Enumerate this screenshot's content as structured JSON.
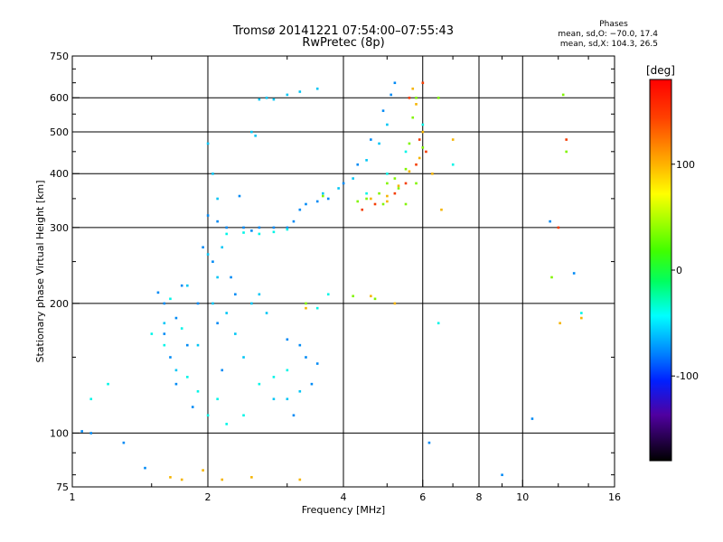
{
  "header": {
    "title_line1": "Tromsø 20141221 07:54:00–07:55:43",
    "title_line2": "RwPretec (8p)",
    "phase_heading": "Phases",
    "phase_line1": "mean, sd,O: −70.0, 17.4",
    "phase_line2": "mean, sd,X: 104.3, 26.5"
  },
  "chart_data": {
    "type": "scatter",
    "title": "Tromsø 20141221 07:54:00–07:55:43",
    "subtitle": "RwPretec (8p)",
    "xlabel": "Frequency [MHz]",
    "ylabel": "Stationary phase Virtual Height [km]",
    "x_scale": "log",
    "y_scale": "log",
    "xlim": [
      1,
      16
    ],
    "ylim": [
      75,
      750
    ],
    "x_ticks": [
      1,
      2,
      4,
      6,
      8,
      10,
      16
    ],
    "y_ticks": [
      75,
      100,
      200,
      300,
      400,
      500,
      600,
      750
    ],
    "grid": true,
    "colorbar": {
      "label": "[deg]",
      "range": [
        -180,
        180
      ],
      "ticks": [
        100,
        0,
        -100
      ],
      "colormap": "rainbow"
    },
    "series": [
      {
        "phase": -100,
        "points": [
          [
            1.05,
            101
          ],
          [
            1.1,
            100
          ],
          [
            1.3,
            95
          ],
          [
            1.45,
            83
          ],
          [
            1.55,
            212
          ],
          [
            1.6,
            200
          ],
          [
            1.6,
            170
          ],
          [
            1.65,
            150
          ],
          [
            1.7,
            185
          ],
          [
            1.7,
            130
          ],
          [
            1.75,
            220
          ],
          [
            1.8,
            160
          ],
          [
            1.85,
            115
          ],
          [
            1.9,
            200
          ],
          [
            1.95,
            270
          ],
          [
            2.0,
            320
          ],
          [
            2.05,
            250
          ],
          [
            2.1,
            310
          ],
          [
            2.1,
            180
          ],
          [
            2.15,
            140
          ],
          [
            2.2,
            300
          ],
          [
            2.25,
            230
          ],
          [
            2.3,
            210
          ],
          [
            2.35,
            355
          ],
          [
            2.4,
            300
          ],
          [
            2.5,
            295
          ],
          [
            2.6,
            300
          ],
          [
            2.8,
            300
          ],
          [
            3.0,
            300
          ],
          [
            3.1,
            310
          ],
          [
            3.2,
            330
          ],
          [
            3.3,
            340
          ],
          [
            3.5,
            345
          ],
          [
            3.7,
            350
          ],
          [
            4.0,
            380
          ],
          [
            4.3,
            420
          ],
          [
            4.6,
            480
          ],
          [
            4.9,
            560
          ],
          [
            5.1,
            610
          ],
          [
            5.2,
            650
          ],
          [
            3.2,
            160
          ],
          [
            3.3,
            150
          ],
          [
            3.4,
            130
          ],
          [
            3.5,
            145
          ],
          [
            3.0,
            165
          ],
          [
            3.1,
            110
          ],
          [
            10.5,
            108
          ],
          [
            13,
            235
          ],
          [
            6.2,
            95
          ],
          [
            9,
            80
          ],
          [
            11.5,
            310
          ]
        ]
      },
      {
        "phase": -80,
        "points": [
          [
            1.6,
            180
          ],
          [
            1.7,
            140
          ],
          [
            1.8,
            220
          ],
          [
            1.9,
            160
          ],
          [
            2.0,
            260
          ],
          [
            2.05,
            200
          ],
          [
            2.1,
            230
          ],
          [
            2.15,
            270
          ],
          [
            2.2,
            190
          ],
          [
            2.3,
            170
          ],
          [
            2.4,
            150
          ],
          [
            2.5,
            200
          ],
          [
            2.6,
            210
          ],
          [
            2.7,
            190
          ],
          [
            2.8,
            120
          ],
          [
            3.0,
            120
          ],
          [
            3.2,
            125
          ],
          [
            2.6,
            595
          ],
          [
            2.7,
            600
          ],
          [
            2.8,
            595
          ],
          [
            3.0,
            610
          ],
          [
            3.2,
            620
          ],
          [
            3.5,
            630
          ],
          [
            2.5,
            500
          ],
          [
            2.55,
            490
          ],
          [
            3.6,
            360
          ],
          [
            3.9,
            370
          ],
          [
            4.2,
            390
          ],
          [
            4.5,
            430
          ],
          [
            4.8,
            470
          ],
          [
            5.0,
            520
          ],
          [
            2.0,
            470
          ],
          [
            2.05,
            400
          ],
          [
            2.1,
            350
          ]
        ]
      },
      {
        "phase": -60,
        "points": [
          [
            1.5,
            170
          ],
          [
            1.6,
            160
          ],
          [
            1.65,
            205
          ],
          [
            1.75,
            175
          ],
          [
            1.8,
            135
          ],
          [
            1.9,
            125
          ],
          [
            2.0,
            110
          ],
          [
            2.1,
            120
          ],
          [
            2.2,
            105
          ],
          [
            2.4,
            110
          ],
          [
            2.6,
            130
          ],
          [
            2.8,
            135
          ],
          [
            3.0,
            140
          ],
          [
            2.2,
            290
          ],
          [
            2.4,
            292
          ],
          [
            2.6,
            290
          ],
          [
            2.8,
            293
          ],
          [
            3.0,
            297
          ],
          [
            1.2,
            130
          ],
          [
            1.1,
            120
          ],
          [
            3.5,
            195
          ],
          [
            3.7,
            210
          ],
          [
            4.5,
            360
          ],
          [
            5.0,
            400
          ],
          [
            5.5,
            450
          ],
          [
            6.0,
            520
          ],
          [
            6.5,
            180
          ],
          [
            7.0,
            420
          ],
          [
            13.5,
            190
          ]
        ]
      },
      {
        "phase": 60,
        "points": [
          [
            4.3,
            345
          ],
          [
            4.5,
            350
          ],
          [
            4.8,
            360
          ],
          [
            5.0,
            380
          ],
          [
            5.2,
            390
          ],
          [
            5.5,
            410
          ],
          [
            5.6,
            470
          ],
          [
            5.7,
            540
          ],
          [
            5.8,
            600
          ],
          [
            4.9,
            340
          ],
          [
            5.3,
            370
          ],
          [
            5.5,
            340
          ],
          [
            5.8,
            380
          ],
          [
            6.0,
            460
          ],
          [
            3.3,
            200
          ],
          [
            4.2,
            208
          ],
          [
            4.7,
            205
          ],
          [
            3.6,
            355
          ],
          [
            6.5,
            600
          ],
          [
            12.5,
            450
          ],
          [
            12.3,
            610
          ],
          [
            11.6,
            230
          ]
        ]
      },
      {
        "phase": 120,
        "points": [
          [
            4.6,
            350
          ],
          [
            5.0,
            355
          ],
          [
            5.3,
            375
          ],
          [
            5.6,
            405
          ],
          [
            5.9,
            435
          ],
          [
            6.0,
            500
          ],
          [
            5.7,
            630
          ],
          [
            5.8,
            580
          ],
          [
            6.3,
            400
          ],
          [
            6.6,
            330
          ],
          [
            7.0,
            480
          ],
          [
            1.65,
            79
          ],
          [
            1.75,
            78
          ],
          [
            1.95,
            82
          ],
          [
            2.15,
            78
          ],
          [
            2.5,
            79
          ],
          [
            3.2,
            78
          ],
          [
            3.3,
            195
          ],
          [
            4.6,
            208
          ],
          [
            5.2,
            200
          ],
          [
            5.0,
            345
          ],
          [
            12.1,
            180
          ],
          [
            13.5,
            185
          ]
        ]
      },
      {
        "phase": 160,
        "points": [
          [
            4.4,
            330
          ],
          [
            4.7,
            340
          ],
          [
            5.2,
            360
          ],
          [
            5.5,
            380
          ],
          [
            5.8,
            420
          ],
          [
            6.1,
            450
          ],
          [
            5.6,
            600
          ],
          [
            6.0,
            650
          ],
          [
            5.9,
            480
          ],
          [
            12.0,
            300
          ],
          [
            12.5,
            480
          ]
        ]
      }
    ]
  }
}
